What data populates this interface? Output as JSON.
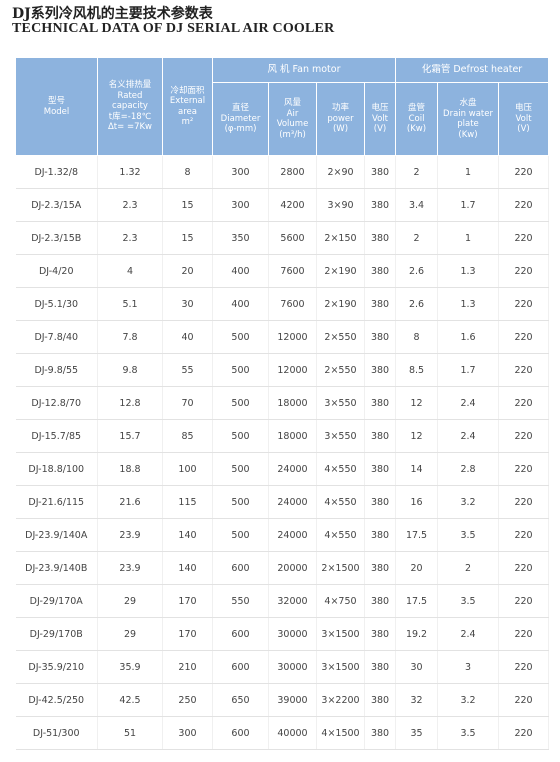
{
  "header": {
    "title_cn": "DJ系列冷风机的主要技术参数表",
    "title_en": "TECHNICAL DATA OF DJ SERIAL AIR COOLER"
  },
  "table": {
    "group_headers": {
      "fan": "风 机 Fan motor",
      "defrost": "化霜管 Defrost heater"
    },
    "columns": [
      [
        "型号",
        "Model"
      ],
      [
        "名义排热量",
        "Rated",
        "capacity",
        "t库=-18℃",
        "Δt= =7Kw"
      ],
      [
        "冷却面积",
        "External",
        "area",
        "m²"
      ],
      [
        "直径",
        "Diameter",
        "(φ-mm)"
      ],
      [
        "风量",
        "Air",
        "Volume",
        "(m³/h)"
      ],
      [
        "功率",
        "power",
        "(W)"
      ],
      [
        "电压",
        "Volt",
        "(V)"
      ],
      [
        "盘管",
        "Coil",
        "(Kw)"
      ],
      [
        "水盘",
        "Drain water",
        "plate",
        "(Kw)"
      ],
      [
        "电压",
        "Volt",
        "(V)"
      ]
    ],
    "rows": [
      [
        "DJ-1.32/8",
        "1.32",
        "8",
        "300",
        "2800",
        "2×90",
        "380",
        "2",
        "1",
        "220"
      ],
      [
        "DJ-2.3/15A",
        "2.3",
        "15",
        "300",
        "4200",
        "3×90",
        "380",
        "3.4",
        "1.7",
        "220"
      ],
      [
        "DJ-2.3/15B",
        "2.3",
        "15",
        "350",
        "5600",
        "2×150",
        "380",
        "2",
        "1",
        "220"
      ],
      [
        "DJ-4/20",
        "4",
        "20",
        "400",
        "7600",
        "2×190",
        "380",
        "2.6",
        "1.3",
        "220"
      ],
      [
        "DJ-5.1/30",
        "5.1",
        "30",
        "400",
        "7600",
        "2×190",
        "380",
        "2.6",
        "1.3",
        "220"
      ],
      [
        "DJ-7.8/40",
        "7.8",
        "40",
        "500",
        "12000",
        "2×550",
        "380",
        "8",
        "1.6",
        "220"
      ],
      [
        "DJ-9.8/55",
        "9.8",
        "55",
        "500",
        "12000",
        "2×550",
        "380",
        "8.5",
        "1.7",
        "220"
      ],
      [
        "DJ-12.8/70",
        "12.8",
        "70",
        "500",
        "18000",
        "3×550",
        "380",
        "12",
        "2.4",
        "220"
      ],
      [
        "DJ-15.7/85",
        "15.7",
        "85",
        "500",
        "18000",
        "3×550",
        "380",
        "12",
        "2.4",
        "220"
      ],
      [
        "DJ-18.8/100",
        "18.8",
        "100",
        "500",
        "24000",
        "4×550",
        "380",
        "14",
        "2.8",
        "220"
      ],
      [
        "DJ-21.6/115",
        "21.6",
        "115",
        "500",
        "24000",
        "4×550",
        "380",
        "16",
        "3.2",
        "220"
      ],
      [
        "DJ-23.9/140A",
        "23.9",
        "140",
        "500",
        "24000",
        "4×550",
        "380",
        "17.5",
        "3.5",
        "220"
      ],
      [
        "DJ-23.9/140B",
        "23.9",
        "140",
        "600",
        "20000",
        "2×1500",
        "380",
        "20",
        "2",
        "220"
      ],
      [
        "DJ-29/170A",
        "29",
        "170",
        "550",
        "32000",
        "4×750",
        "380",
        "17.5",
        "3.5",
        "220"
      ],
      [
        "DJ-29/170B",
        "29",
        "170",
        "600",
        "30000",
        "3×1500",
        "380",
        "19.2",
        "2.4",
        "220"
      ],
      [
        "DJ-35.9/210",
        "35.9",
        "210",
        "600",
        "30000",
        "3×1500",
        "380",
        "30",
        "3",
        "220"
      ],
      [
        "DJ-42.5/250",
        "42.5",
        "250",
        "650",
        "39000",
        "3×2200",
        "380",
        "32",
        "3.2",
        "220"
      ],
      [
        "DJ-51/300",
        "51",
        "300",
        "600",
        "40000",
        "4×1500",
        "380",
        "35",
        "3.5",
        "220"
      ]
    ]
  }
}
